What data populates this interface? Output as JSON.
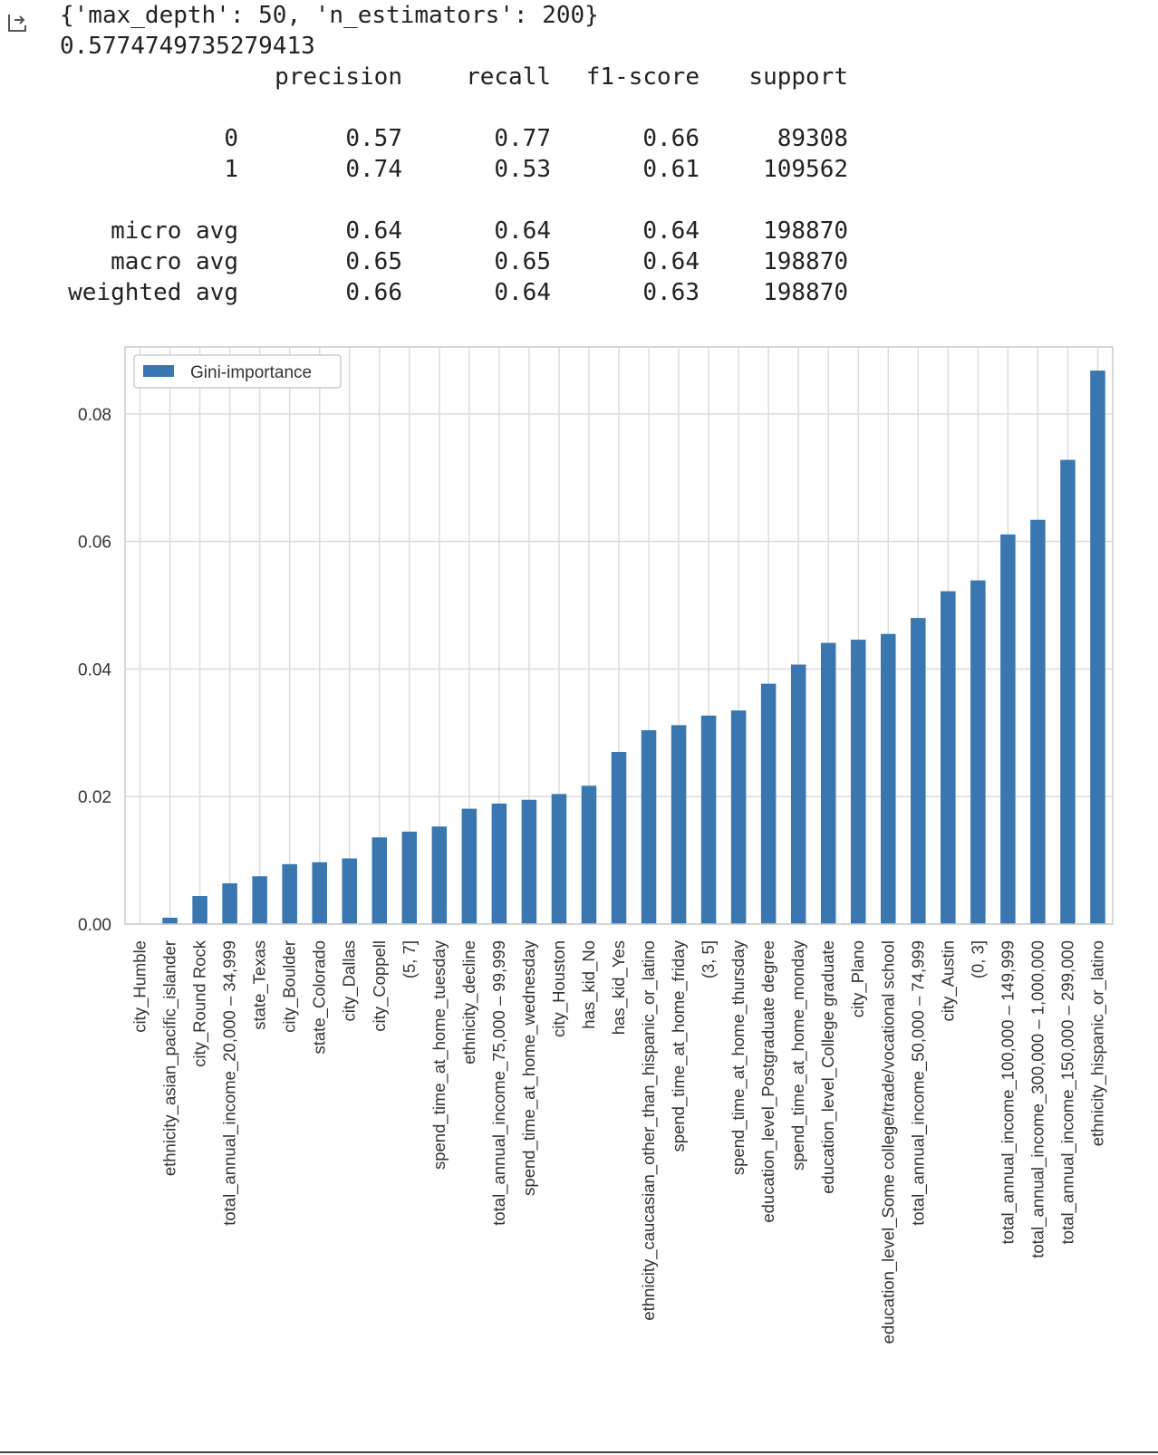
{
  "output_icon": "output-arrow-icon",
  "console": {
    "best_params": "{'max_depth': 50, 'n_estimators': 200}",
    "score": "0.5774749735279413"
  },
  "report": {
    "headers": [
      "precision",
      "recall",
      "f1-score",
      "support"
    ],
    "rows": [
      {
        "label": "0",
        "precision": "0.57",
        "recall": "0.77",
        "f1": "0.66",
        "support": "89308"
      },
      {
        "label": "1",
        "precision": "0.74",
        "recall": "0.53",
        "f1": "0.61",
        "support": "109562"
      },
      {
        "label": "micro avg",
        "precision": "0.64",
        "recall": "0.64",
        "f1": "0.64",
        "support": "198870"
      },
      {
        "label": "macro avg",
        "precision": "0.65",
        "recall": "0.65",
        "f1": "0.64",
        "support": "198870"
      },
      {
        "label": "weighted avg",
        "precision": "0.66",
        "recall": "0.64",
        "f1": "0.63",
        "support": "198870"
      }
    ]
  },
  "chart_data": {
    "type": "bar",
    "legend": {
      "label": "Gini-importance",
      "placement": "top-left"
    },
    "color": "#3a76af",
    "grid": true,
    "ylim": [
      0,
      0.0905
    ],
    "yticks": [
      "0.00",
      "0.02",
      "0.04",
      "0.06",
      "0.08"
    ],
    "ytick_values": [
      0,
      0.02,
      0.04,
      0.06,
      0.08
    ],
    "categories": [
      "city_Humble",
      "ethnicity_asian_pacific_islander",
      "city_Round Rock",
      "total_annual_income_20,000 – 34,999",
      "state_Texas",
      "city_Boulder",
      "state_Colorado",
      "city_Dallas",
      "city_Coppell",
      "(5, 7]",
      "spend_time_at_home_tuesday",
      "ethnicity_decline",
      "total_annual_income_75,000 – 99,999",
      "spend_time_at_home_wednesday",
      "city_Houston",
      "has_kid_No",
      "has_kid_Yes",
      "ethnicity_caucasian_other_than_hispanic_or_latino",
      "spend_time_at_home_friday",
      "(3, 5]",
      "spend_time_at_home_thursday",
      "education_level_Postgraduate degree",
      "spend_time_at_home_monday",
      "education_level_College graduate",
      "city_Plano",
      "education_level_Some college/trade/vocational school",
      "total_annual_income_50,000 – 74,999",
      "city_Austin",
      "(0, 3]",
      "total_annual_income_100,000 – 149,999",
      "total_annual_income_300,000 – 1,000,000",
      "total_annual_income_150,000 – 299,000",
      "ethnicity_hispanic_or_latino"
    ],
    "values": [
      0.0,
      0.001,
      0.0044,
      0.0064,
      0.0075,
      0.0094,
      0.0097,
      0.0103,
      0.0136,
      0.0145,
      0.0153,
      0.0181,
      0.0189,
      0.0195,
      0.0204,
      0.0217,
      0.027,
      0.0304,
      0.0312,
      0.0327,
      0.0335,
      0.0377,
      0.0407,
      0.0441,
      0.0446,
      0.0455,
      0.048,
      0.0522,
      0.0539,
      0.0611,
      0.0634,
      0.0728,
      0.0868
    ]
  }
}
